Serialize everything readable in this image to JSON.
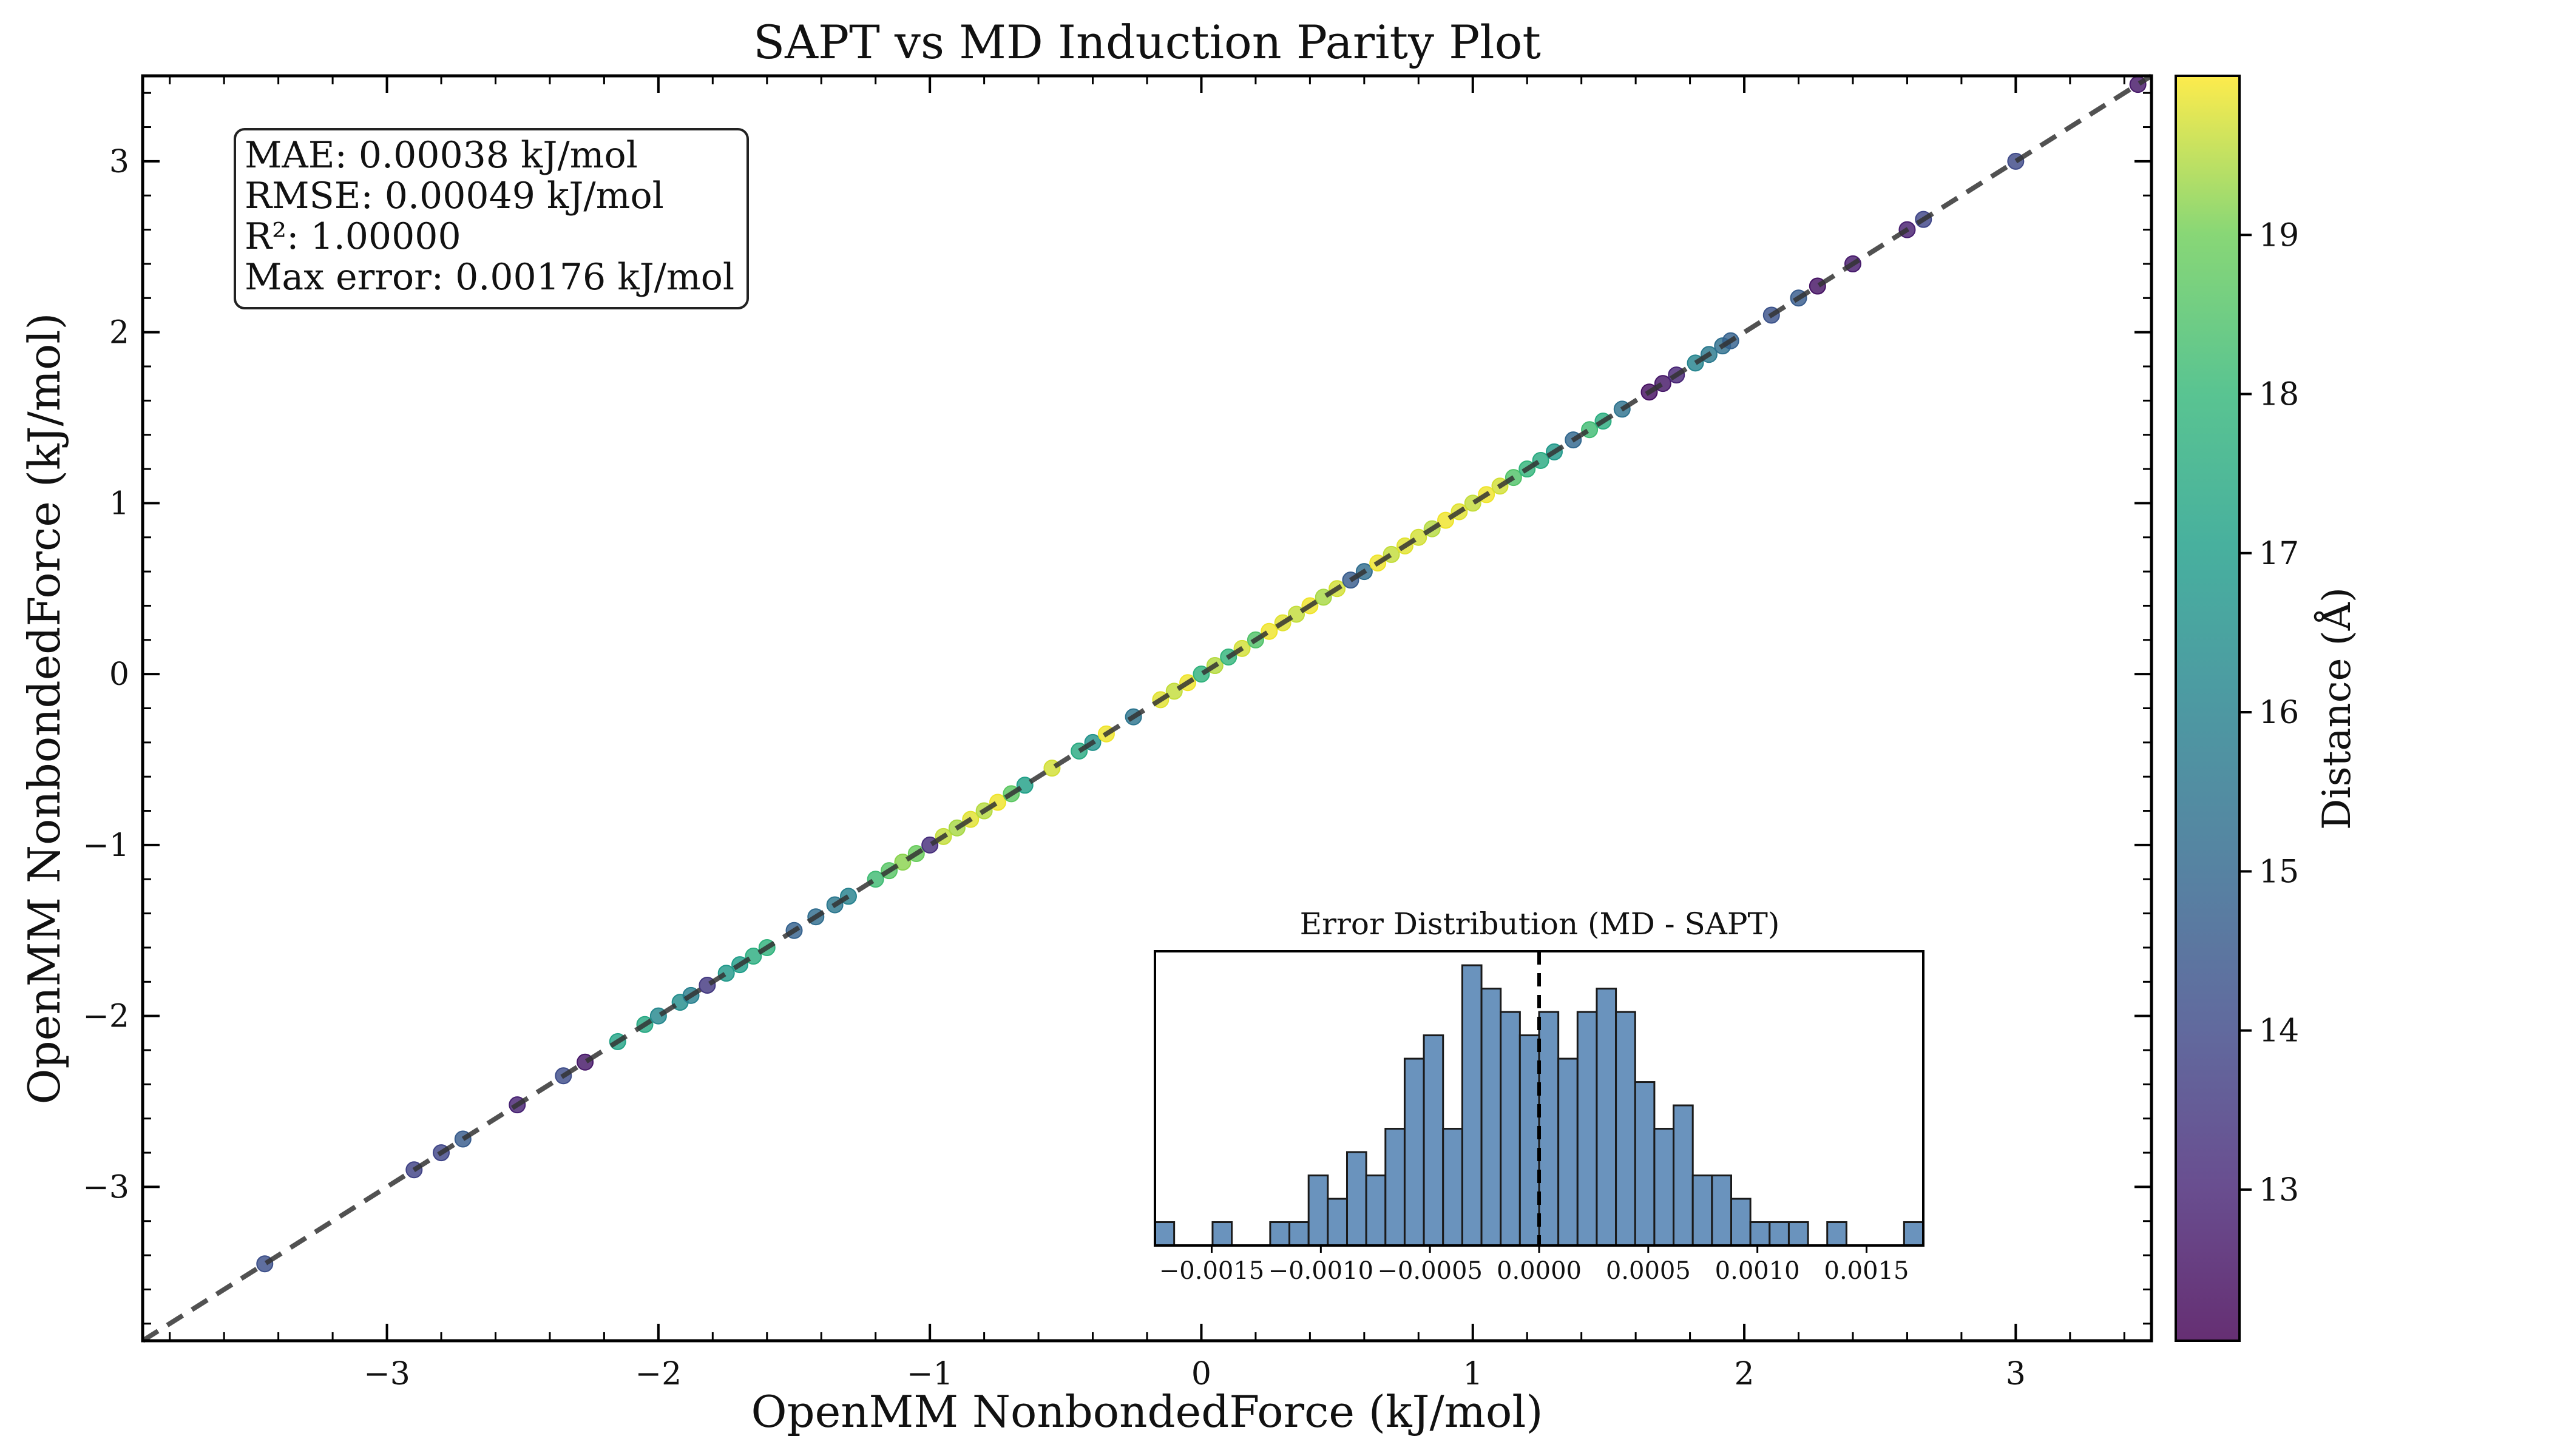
{
  "chart_data": [
    {
      "type": "scatter",
      "title": "SAPT vs MD Induction Parity Plot",
      "xlabel": "OpenMM NonbondedForce (kJ/mol)",
      "ylabel": "OpenMM NonbondedForce (kJ/mol)",
      "xlim": [
        -3.9,
        3.5
      ],
      "ylim": [
        -3.9,
        3.5
      ],
      "x_ticks": [
        -3,
        -2,
        -1,
        0,
        1,
        2,
        3
      ],
      "y_ticks": [
        -3,
        -2,
        -1,
        0,
        1,
        2,
        3
      ],
      "x_tick_labels": [
        "−3",
        "−2",
        "−1",
        "0",
        "1",
        "2",
        "3"
      ],
      "y_tick_labels": [
        "−3",
        "−2",
        "−1",
        "0",
        "1",
        "2",
        "3"
      ],
      "grid": false,
      "reference_line": "y = x",
      "stats_lines": [
        "MAE: 0.00038 kJ/mol",
        "RMSE: 0.00049 kJ/mol",
        "R²: 1.00000",
        "Max error: 0.00176 kJ/mol"
      ],
      "colorbar": {
        "label": "Distance (Å)",
        "range": [
          12.05,
          20.0
        ],
        "ticks": [
          13,
          14,
          15,
          16,
          17,
          18,
          19
        ],
        "tick_labels": [
          "13",
          "14",
          "15",
          "16",
          "17",
          "18",
          "19"
        ],
        "colormap": "viridis"
      },
      "points": {
        "x": [
          -3.45,
          -2.9,
          -2.8,
          -2.72,
          -2.52,
          -2.35,
          -2.27,
          -2.15,
          -2.05,
          -2.0,
          -1.92,
          -1.88,
          -1.82,
          -1.75,
          -1.7,
          -1.65,
          -1.6,
          -1.5,
          -1.42,
          -1.35,
          -1.3,
          -1.2,
          -1.15,
          -1.1,
          -1.05,
          -1.0,
          -0.95,
          -0.9,
          -0.85,
          -0.8,
          -0.75,
          -0.7,
          -0.65,
          -0.55,
          -0.45,
          -0.4,
          -0.35,
          -0.25,
          -0.15,
          -0.1,
          -0.05,
          0.0,
          0.05,
          0.1,
          0.15,
          0.2,
          0.25,
          0.3,
          0.35,
          0.4,
          0.45,
          0.5,
          0.55,
          0.6,
          0.65,
          0.7,
          0.75,
          0.8,
          0.85,
          0.9,
          0.95,
          1.0,
          1.05,
          1.1,
          1.15,
          1.2,
          1.25,
          1.3,
          1.37,
          1.43,
          1.48,
          1.55,
          1.65,
          1.7,
          1.75,
          1.82,
          1.87,
          1.92,
          1.95,
          2.1,
          2.2,
          2.27,
          2.4,
          2.6,
          2.66,
          3.0,
          3.45
        ],
        "y": [
          -3.45,
          -2.9,
          -2.8,
          -2.72,
          -2.52,
          -2.35,
          -2.27,
          -2.15,
          -2.05,
          -2.0,
          -1.92,
          -1.88,
          -1.82,
          -1.75,
          -1.7,
          -1.65,
          -1.6,
          -1.5,
          -1.42,
          -1.35,
          -1.3,
          -1.2,
          -1.15,
          -1.1,
          -1.05,
          -1.0,
          -0.95,
          -0.9,
          -0.85,
          -0.8,
          -0.75,
          -0.7,
          -0.65,
          -0.55,
          -0.45,
          -0.4,
          -0.35,
          -0.25,
          -0.15,
          -0.1,
          -0.05,
          0.0,
          0.05,
          0.1,
          0.15,
          0.2,
          0.25,
          0.3,
          0.35,
          0.4,
          0.45,
          0.5,
          0.55,
          0.6,
          0.65,
          0.7,
          0.75,
          0.8,
          0.85,
          0.9,
          0.95,
          1.0,
          1.05,
          1.1,
          1.15,
          1.2,
          1.25,
          1.3,
          1.37,
          1.43,
          1.48,
          1.55,
          1.65,
          1.7,
          1.75,
          1.82,
          1.87,
          1.92,
          1.95,
          2.1,
          2.2,
          2.27,
          2.4,
          2.6,
          2.66,
          3.0,
          3.45
        ],
        "distance": [
          14.2,
          13.8,
          13.9,
          14.6,
          12.9,
          14.1,
          12.6,
          17.2,
          17.4,
          16.2,
          16.4,
          15.9,
          13.5,
          16.8,
          17.0,
          17.6,
          17.8,
          14.8,
          15.2,
          15.6,
          16.0,
          18.2,
          18.6,
          19.2,
          18.9,
          13.2,
          19.6,
          19.4,
          19.8,
          19.5,
          19.9,
          18.7,
          17.1,
          19.7,
          17.5,
          16.6,
          19.9,
          15.5,
          19.8,
          19.6,
          19.9,
          17.8,
          19.5,
          17.9,
          19.7,
          18.5,
          19.9,
          19.8,
          19.6,
          19.9,
          19.4,
          19.7,
          14.6,
          15.2,
          19.9,
          19.6,
          19.8,
          19.7,
          19.5,
          19.9,
          19.8,
          19.6,
          19.9,
          19.7,
          18.5,
          17.9,
          17.5,
          16.8,
          15.0,
          18.2,
          17.6,
          15.4,
          12.4,
          12.6,
          13.0,
          16.1,
          15.7,
          15.3,
          14.8,
          14.3,
          14.6,
          12.5,
          12.7,
          12.8,
          13.9,
          14.0,
          12.6
        ]
      }
    },
    {
      "type": "bar",
      "title": "Error Distribution (MD - SAPT)",
      "xlim": [
        -0.00176,
        0.00176
      ],
      "x_ticks": [
        -0.0015,
        -0.001,
        -0.0005,
        0.0,
        0.0005,
        0.001,
        0.0015
      ],
      "x_tick_labels": [
        "−0.0015",
        "−0.0010",
        "−0.0005",
        "0.0000",
        "0.0005",
        "0.0010",
        "0.0015"
      ],
      "reference_line_x": 0.0,
      "bin_edges_start": -0.00176,
      "bin_width": 8.8e-05,
      "counts": [
        1,
        0,
        0,
        1,
        0,
        0,
        1,
        1,
        3,
        2,
        4,
        3,
        5,
        8,
        9,
        5,
        12,
        11,
        10,
        9,
        10,
        8,
        10,
        11,
        10,
        7,
        5,
        6,
        3,
        3,
        2,
        1,
        1,
        1,
        0,
        1,
        0,
        0,
        0,
        1
      ]
    }
  ]
}
